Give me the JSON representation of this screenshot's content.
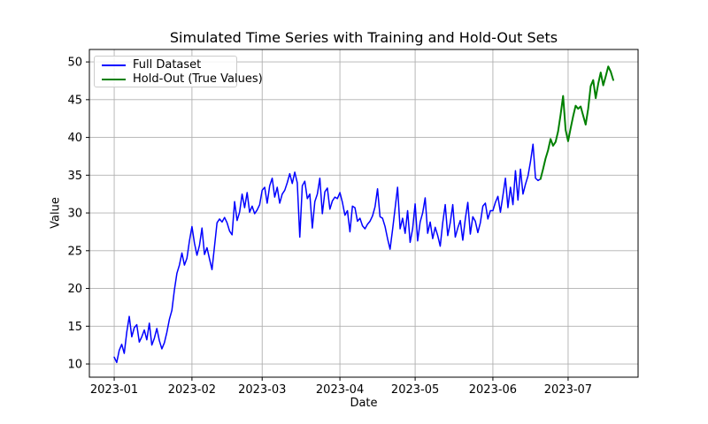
{
  "chart_data": {
    "type": "line",
    "title": "Simulated Time Series with Training and Hold-Out Sets",
    "xlabel": "Date",
    "ylabel": "Value",
    "grid": true,
    "background": "#ffffff",
    "grid_color": "#b0b0b0",
    "spine_color": "#000000",
    "x_unit": "day index from 2023-01-01 (daily data)",
    "x_tick_labels": [
      "2023-01",
      "2023-02",
      "2023-03",
      "2023-04",
      "2023-05",
      "2023-06",
      "2023-07"
    ],
    "x_tick_days": [
      0,
      31,
      59,
      90,
      120,
      151,
      181
    ],
    "y_ticks": [
      10,
      15,
      20,
      25,
      30,
      35,
      40,
      45,
      50
    ],
    "x_range_days": [
      -9.9,
      208.9
    ],
    "y_range": [
      8.25,
      51.65
    ],
    "legend": {
      "position": "upper left",
      "entries": [
        "Full Dataset",
        "Hold-Out (True Values)"
      ]
    },
    "series": [
      {
        "name": "Full Dataset",
        "color": "#0000ff",
        "line_width": 1.5,
        "start_day": 0,
        "values": [
          10.9,
          10.2,
          11.8,
          12.6,
          11.4,
          14.2,
          16.3,
          13.6,
          14.8,
          15.2,
          12.9,
          13.6,
          14.5,
          13.2,
          15.4,
          12.5,
          13.4,
          14.7,
          13.1,
          12.0,
          12.8,
          14.2,
          15.9,
          17.1,
          19.8,
          22.0,
          23.1,
          24.7,
          23.1,
          24.0,
          26.3,
          28.2,
          26.0,
          24.4,
          25.7,
          28.0,
          24.5,
          25.4,
          23.9,
          22.5,
          25.6,
          28.7,
          29.2,
          28.8,
          29.4,
          28.7,
          27.6,
          27.1,
          31.5,
          29.0,
          30.1,
          32.5,
          30.7,
          32.7,
          30.1,
          30.9,
          29.9,
          30.4,
          31.1,
          33.0,
          33.4,
          31.3,
          33.6,
          34.6,
          32.1,
          33.4,
          31.3,
          32.5,
          33.0,
          34.0,
          35.2,
          33.9,
          35.4,
          34.0,
          26.8,
          33.6,
          34.2,
          31.9,
          32.5,
          28.0,
          31.5,
          32.5,
          34.6,
          29.9,
          32.8,
          33.3,
          30.5,
          31.6,
          32.1,
          31.9,
          32.7,
          31.4,
          29.7,
          30.3,
          27.5,
          30.9,
          30.7,
          28.9,
          29.3,
          28.3,
          27.9,
          28.5,
          28.9,
          29.6,
          30.8,
          33.2,
          29.5,
          29.3,
          28.2,
          26.6,
          25.2,
          27.8,
          30.6,
          33.4,
          27.9,
          29.3,
          27.3,
          30.3,
          26.1,
          27.9,
          31.2,
          26.3,
          28.8,
          30.0,
          32.0,
          27.3,
          28.8,
          26.6,
          28.1,
          27.0,
          25.6,
          28.7,
          31.1,
          27.0,
          28.7,
          31.1,
          26.8,
          28.0,
          29.0,
          26.4,
          29.2,
          31.4,
          27.2,
          29.5,
          28.9,
          27.4,
          28.7,
          30.9,
          31.3,
          29.2,
          30.3,
          30.3,
          31.4,
          32.2,
          30.1,
          32.3,
          34.6,
          30.7,
          33.4,
          31.1,
          35.6,
          31.7,
          35.8,
          32.5,
          33.8,
          34.9,
          36.8,
          39.1,
          34.6,
          34.3,
          34.5
        ]
      },
      {
        "name": "Hold-Out (True Values)",
        "color": "#008000",
        "line_width": 2,
        "start_day": 170,
        "values": [
          34.5,
          35.8,
          37.2,
          38.3,
          39.8,
          38.9,
          39.4,
          40.8,
          43.0,
          45.5,
          41.0,
          39.5,
          41.2,
          42.8,
          44.2,
          43.8,
          44.1,
          42.9,
          41.7,
          43.8,
          46.8,
          47.6,
          45.2,
          47.1,
          48.6,
          46.9,
          48.1,
          49.4,
          48.7,
          47.6
        ]
      }
    ]
  }
}
